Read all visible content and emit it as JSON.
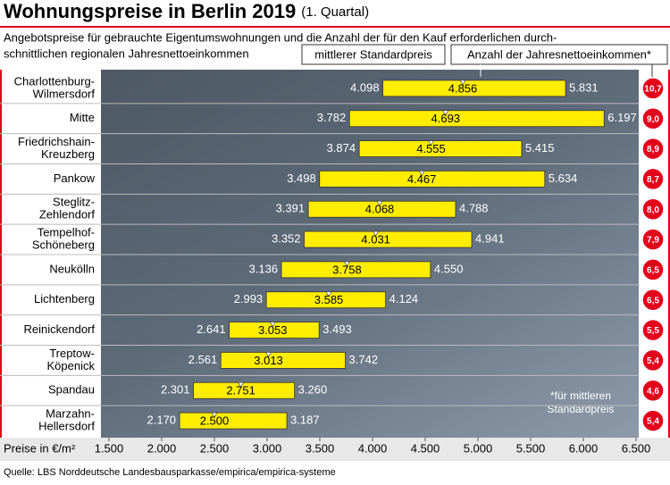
{
  "chart_data": {
    "type": "range_bar",
    "title": "Wohnungspreise in Berlin 2019",
    "title_suffix": "(1. Quartal)",
    "subtitle": [
      "Angebotspreise für gebrauchte Eigentumswohnungen und die Anzahl der für den Kauf erforderlichen durch-",
      "schnittlichen regionalen Jahresnettoeinkommen"
    ],
    "categories": [
      [
        "Charlottenburg-",
        "Wilmersdorf"
      ],
      [
        "Mitte"
      ],
      [
        "Friedrichshain-",
        "Kreuzberg"
      ],
      [
        "Pankow"
      ],
      [
        "Steglitz-",
        "Zehlendorf"
      ],
      [
        "Tempelhof-",
        "Schöneberg"
      ],
      [
        "Neukölln"
      ],
      [
        "Lichtenberg"
      ],
      [
        "Reinickendorf"
      ],
      [
        "Treptow-",
        "Köpenick"
      ],
      [
        "Spandau"
      ],
      [
        "Marzahn-",
        "Hellersdorf"
      ]
    ],
    "low": {
      "values": [
        4098,
        3782,
        3874,
        3498,
        3391,
        3352,
        3136,
        2993,
        2641,
        2561,
        2301,
        2170
      ],
      "value_labels": [
        "4.098",
        "3.782",
        "3.874",
        "3.498",
        "3.391",
        "3.352",
        "3.136",
        "2.993",
        "2.641",
        "2.561",
        "2.301",
        "2.170"
      ]
    },
    "median": {
      "name": "mittlerer Standardpreis",
      "values": [
        4856,
        4693,
        4555,
        4467,
        4068,
        4031,
        3758,
        3585,
        3053,
        3013,
        2751,
        2500
      ],
      "value_labels": [
        "4.856",
        "4.693",
        "4.555",
        "4.467",
        "4.068",
        "4.031",
        "3.758",
        "3.585",
        "3.053",
        "3.013",
        "2.751",
        "2.500"
      ]
    },
    "high": {
      "values": [
        5831,
        6197,
        5415,
        5634,
        4788,
        4941,
        4550,
        4124,
        3493,
        3742,
        3260,
        3187
      ],
      "value_labels": [
        "5.831",
        "6.197",
        "5.415",
        "5.634",
        "4.788",
        "4.941",
        "4.550",
        "4.124",
        "3.493",
        "3.742",
        "3.260",
        "3.187"
      ]
    },
    "ratio": {
      "name": "Anzahl der Jahresnettoeinkommen*",
      "color": "#e3001b",
      "values": [
        10.7,
        9.0,
        8.9,
        8.7,
        8.0,
        7.9,
        6.5,
        6.5,
        5.5,
        5.4,
        4.6,
        5.4
      ],
      "value_labels": [
        "10,7",
        "9,0",
        "8,9",
        "8,7",
        "8,0",
        "7,9",
        "6,5",
        "6,5",
        "5,5",
        "5,4",
        "4,6",
        "5,4"
      ]
    },
    "bar_color": "#ffed00",
    "xlabel": "Preise in €/m²",
    "xlim": [
      1500,
      6500
    ],
    "xticks": [
      {
        "value": 1500,
        "label": "1.500"
      },
      {
        "value": 2000,
        "label": "2.000"
      },
      {
        "value": 2500,
        "label": "2.500"
      },
      {
        "value": 3000,
        "label": "3.000"
      },
      {
        "value": 3500,
        "label": "3.500"
      },
      {
        "value": 4000,
        "label": "4.000"
      },
      {
        "value": 4500,
        "label": "4.500"
      },
      {
        "value": 5000,
        "label": "5.000"
      },
      {
        "value": 5500,
        "label": "5.500"
      },
      {
        "value": 6000,
        "label": "6.000"
      },
      {
        "value": 6500,
        "label": "6.500"
      }
    ],
    "note": [
      "*für mittleren",
      "Standardpreis"
    ],
    "source": "Quelle: LBS Norddeutsche Landesbausparkasse/empirica/empirica-systeme"
  }
}
